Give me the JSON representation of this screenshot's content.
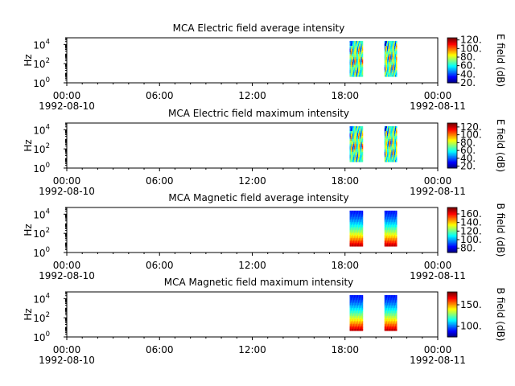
{
  "chart_data": [
    {
      "type": "heatmap",
      "title": "MCA  Electric field average intensity",
      "ylabel": "Hz",
      "y_scale": "log",
      "ylim": [
        1,
        50000
      ],
      "y_ticks": [
        "10^0",
        "10^2",
        "10^4"
      ],
      "x_ticks": [
        "00:00",
        "06:00",
        "12:00",
        "18:00",
        "00:00"
      ],
      "x_tick_hours": [
        0,
        6,
        12,
        18,
        24
      ],
      "date_start": "1992-08-10",
      "date_end": "1992-08-11",
      "xlim_hours": [
        0,
        24
      ],
      "data_intervals_hours": [
        [
          18.3,
          19.15
        ],
        [
          20.55,
          21.35
        ]
      ],
      "colorbar": {
        "label": "E field (dB)",
        "range": [
          20,
          125
        ],
        "ticks": [
          20,
          40,
          60,
          80,
          100,
          120
        ],
        "colormap": "jet"
      },
      "pattern": "electric"
    },
    {
      "type": "heatmap",
      "title": "MCA  Electric field maximum intensity",
      "ylabel": "Hz",
      "y_scale": "log",
      "ylim": [
        1,
        50000
      ],
      "y_ticks": [
        "10^0",
        "10^2",
        "10^4"
      ],
      "x_ticks": [
        "00:00",
        "06:00",
        "12:00",
        "18:00",
        "00:00"
      ],
      "x_tick_hours": [
        0,
        6,
        12,
        18,
        24
      ],
      "date_start": "1992-08-10",
      "date_end": "1992-08-11",
      "xlim_hours": [
        0,
        24
      ],
      "data_intervals_hours": [
        [
          18.3,
          19.15
        ],
        [
          20.55,
          21.35
        ]
      ],
      "colorbar": {
        "label": "E field (dB)",
        "range": [
          15,
          130
        ],
        "ticks": [
          20,
          40,
          60,
          80,
          100,
          120
        ],
        "colormap": "jet"
      },
      "pattern": "electric"
    },
    {
      "type": "heatmap",
      "title": "MCA  Magnetic field average intensity",
      "ylabel": "Hz",
      "y_scale": "log",
      "ylim": [
        1,
        50000
      ],
      "y_ticks": [
        "10^0",
        "10^2",
        "10^4"
      ],
      "x_ticks": [
        "00:00",
        "06:00",
        "12:00",
        "18:00",
        "00:00"
      ],
      "x_tick_hours": [
        0,
        6,
        12,
        18,
        24
      ],
      "date_start": "1992-08-10",
      "date_end": "1992-08-11",
      "xlim_hours": [
        0,
        24
      ],
      "data_intervals_hours": [
        [
          18.3,
          19.15
        ],
        [
          20.55,
          21.35
        ]
      ],
      "colorbar": {
        "label": "B field (dB)",
        "range": [
          70,
          175
        ],
        "ticks": [
          80,
          100,
          120,
          140,
          160
        ],
        "colormap": "jet"
      },
      "pattern": "magnetic"
    },
    {
      "type": "heatmap",
      "title": "MCA  Magnetic field maximum intensity",
      "ylabel": "Hz",
      "y_scale": "log",
      "ylim": [
        1,
        50000
      ],
      "y_ticks": [
        "10^0",
        "10^2",
        "10^4"
      ],
      "x_ticks": [
        "00:00",
        "06:00",
        "12:00",
        "18:00",
        "00:00"
      ],
      "x_tick_hours": [
        0,
        6,
        12,
        18,
        24
      ],
      "date_start": "1992-08-10",
      "date_end": "1992-08-11",
      "xlim_hours": [
        0,
        24
      ],
      "data_intervals_hours": [
        [
          18.3,
          19.15
        ],
        [
          20.55,
          21.35
        ]
      ],
      "colorbar": {
        "label": "B field (dB)",
        "range": [
          75,
          180
        ],
        "ticks": [
          100,
          150
        ],
        "colormap": "jet"
      },
      "pattern": "magnetic"
    }
  ]
}
